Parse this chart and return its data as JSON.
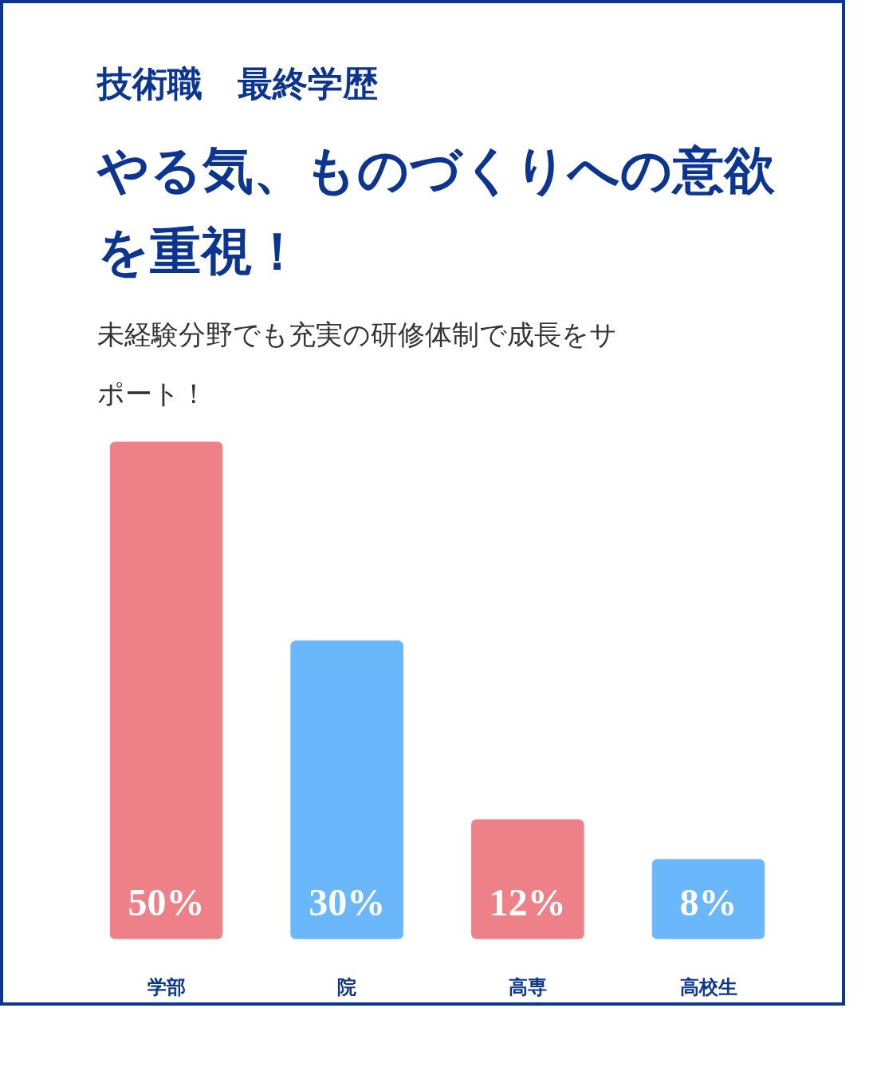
{
  "chart_data": {
    "type": "bar",
    "title": "技術職　最終学歴",
    "subtitle": "やる気、ものづくりへの意欲を重視！",
    "annotations": [
      "未経験分野でも充実の研修体制で成長をサポート！"
    ],
    "categories": [
      "学部",
      "院",
      "高専",
      "高校生"
    ],
    "values": [
      50,
      30,
      12,
      8
    ],
    "value_labels": [
      "50%",
      "30%",
      "12%",
      "8%"
    ],
    "colors": [
      "#ee8087",
      "#6ab8fb",
      "#ee8087",
      "#6ab8fb"
    ],
    "grid": false
  }
}
